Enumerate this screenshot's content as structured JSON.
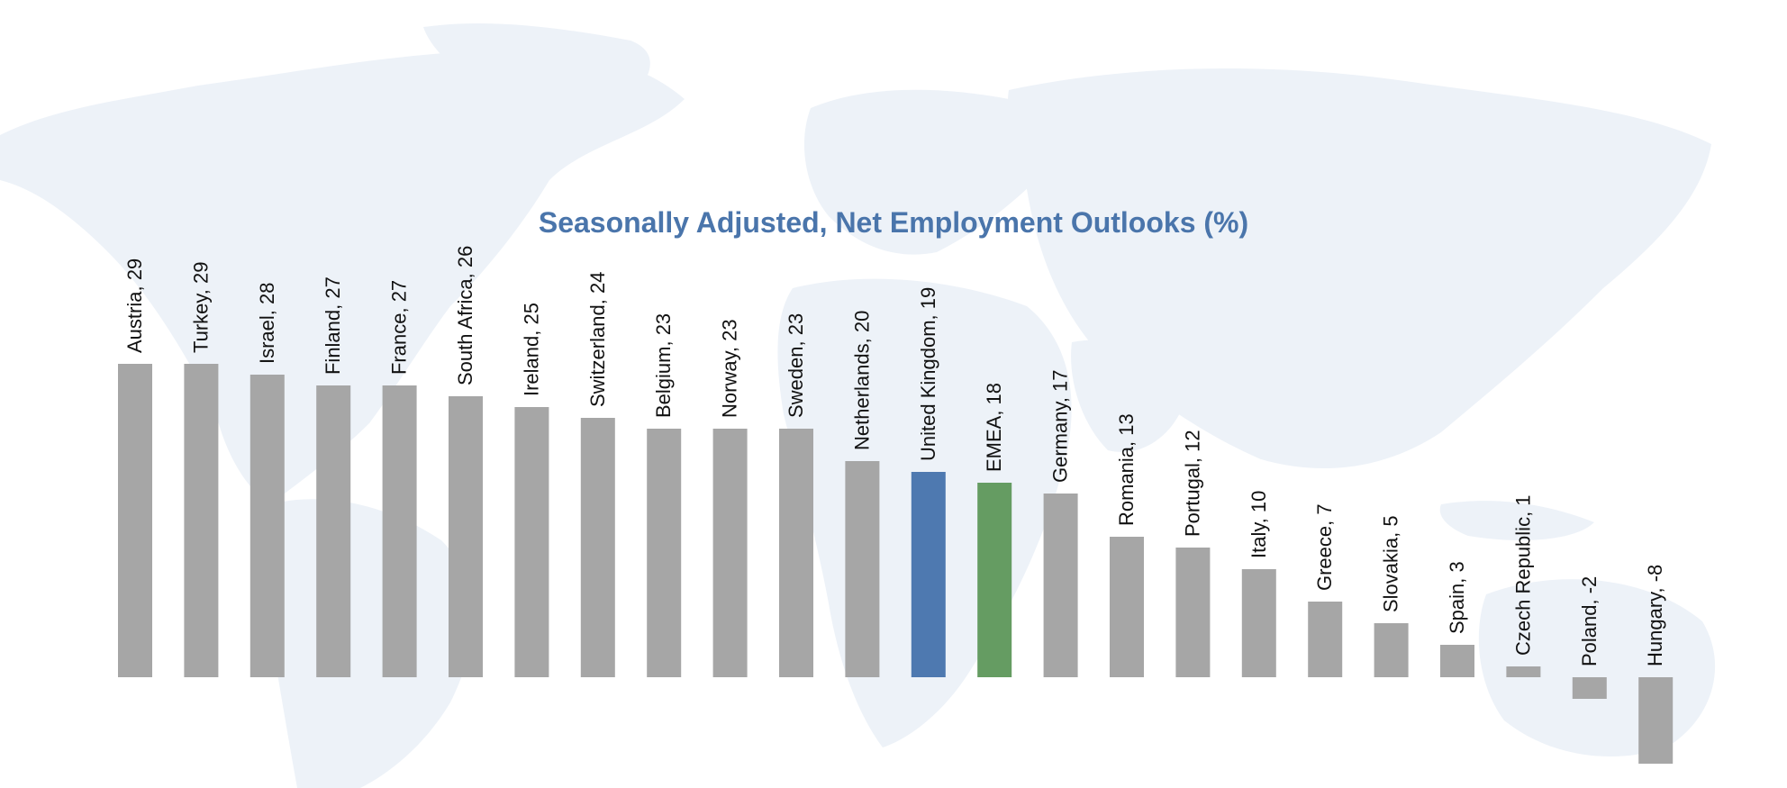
{
  "chart_data": {
    "type": "bar",
    "title": "Seasonally Adjusted, Net Employment Outlooks (%)",
    "xlabel": "",
    "ylabel": "",
    "categories": [
      "Austria",
      "Turkey",
      "Israel",
      "Finland",
      "France",
      "South Africa",
      "Ireland",
      "Switzerland",
      "Belgium",
      "Norway",
      "Sweden",
      "Netherlands",
      "United Kingdom",
      "EMEA",
      "Germany",
      "Romania",
      "Portugal",
      "Italy",
      "Greece",
      "Slovakia",
      "Spain",
      "Czech Republic",
      "Poland",
      "Hungary"
    ],
    "values": [
      29,
      29,
      28,
      27,
      27,
      26,
      25,
      24,
      23,
      23,
      23,
      20,
      19,
      18,
      17,
      13,
      12,
      10,
      7,
      5,
      3,
      1,
      -2,
      -8
    ],
    "data_labels": [
      "Austria, 29",
      "Turkey, 29",
      "Israel, 28",
      "Finland, 27",
      "France, 27",
      "South Africa, 26",
      "Ireland, 25",
      "Switzerland, 24",
      "Belgium, 23",
      "Norway, 23",
      "Sweden, 23",
      "Netherlands, 20",
      "United Kingdom, 19",
      "EMEA, 18",
      "Germany, 17",
      "Romania, 13",
      "Portugal, 12",
      "Italy, 10",
      "Greece, 7",
      "Slovakia, 5",
      "Spain, 3",
      "Czech Republic, 1",
      "Poland, -2",
      "Hungary, -8"
    ],
    "highlights": {
      "United Kingdom": "#4e79b0",
      "EMEA": "#659c62"
    },
    "colors": {
      "default_bar": "#a6a6a6",
      "title": "#4a75ab",
      "map": "#edf2f8"
    },
    "ylim": [
      -8,
      29
    ],
    "grid": false,
    "legend": "none"
  }
}
